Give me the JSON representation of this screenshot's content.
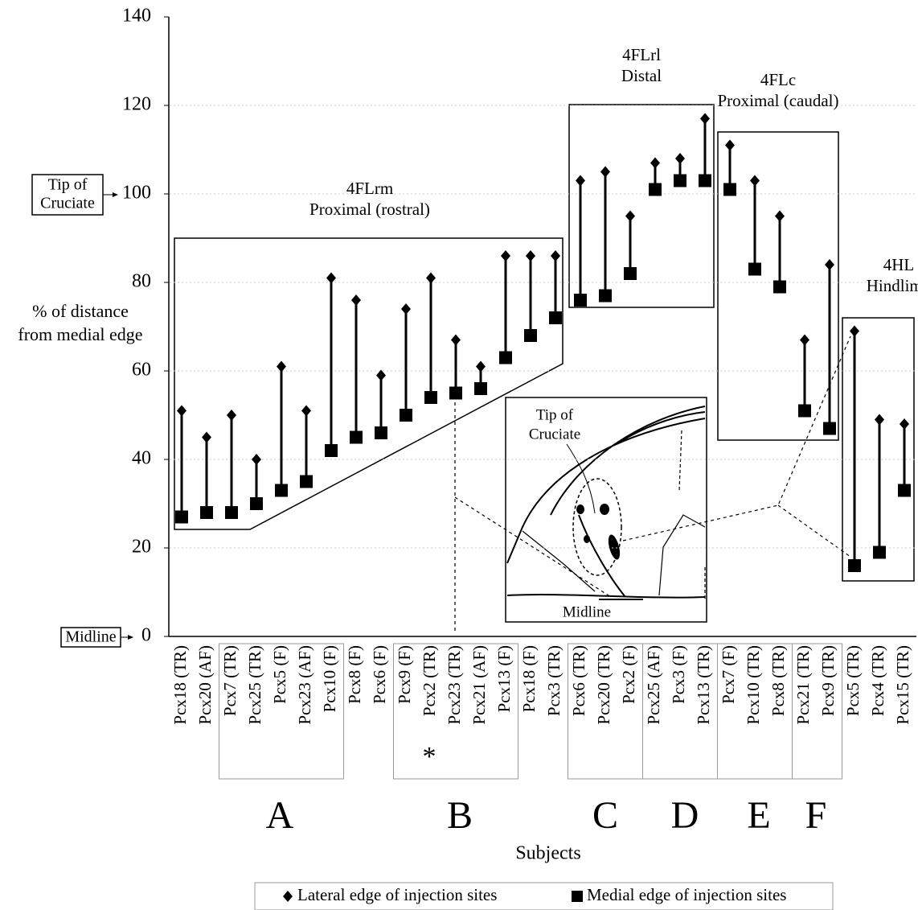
{
  "chart_data": {
    "type": "dumbbell",
    "ylabel": [
      "% of distance",
      "from medial edge"
    ],
    "xlabel": "Subjects",
    "ylim": [
      0,
      140
    ],
    "yticks": [
      0,
      20,
      40,
      60,
      80,
      100,
      120,
      140
    ],
    "grid": true,
    "categories": [
      "Pcx18 (TR)",
      "Pcx20 (AF)",
      "Pcx7 (TR)",
      "Pcx25 (TR)",
      "Pcx5 (F)",
      "Pcx23 (AF)",
      "Pcx10 (F)",
      "Pcx8 (F)",
      "Pcx6 (F)",
      "Pcx9 (F)",
      "Pcx2 (TR)",
      "Pcx23 (TR)",
      "Pcx21 (AF)",
      "Pcx13 (F)",
      "Pcx18 (F)",
      "Pcx3 (TR)",
      "Pcx6 (TR)",
      "Pcx20 (TR)",
      "Pcx2 (F)",
      "Pcx25 (AF)",
      "Pcx3 (F)",
      "Pcx13 (TR)",
      "Pcx7 (F)",
      "Pcx10 (TR)",
      "Pcx8 (TR)",
      "Pcx21 (TR)",
      "Pcx9 (TR)",
      "Pcx5 (TR)",
      "Pcx4 (TR)",
      "Pcx15 (TR)"
    ],
    "series": [
      {
        "name": "Lateral edge of injection sites",
        "marker": "diamond",
        "color": "#000000",
        "values": [
          51,
          45,
          50,
          40,
          61,
          51,
          81,
          76,
          59,
          74,
          81,
          67,
          61,
          86,
          86,
          86,
          103,
          105,
          95,
          107,
          108,
          117,
          111,
          103,
          95,
          67,
          84,
          69,
          49,
          48
        ]
      },
      {
        "name": "Medial edge of injection sites",
        "marker": "square",
        "color": "#000000",
        "values": [
          27,
          28,
          28,
          30,
          33,
          35,
          42,
          45,
          46,
          50,
          54,
          55,
          56,
          63,
          68,
          72,
          76,
          77,
          82,
          101,
          103,
          103,
          101,
          83,
          79,
          51,
          47,
          16,
          19,
          33
        ]
      }
    ],
    "asterisk": "*",
    "groups": [
      "A",
      "B",
      "C",
      "D",
      "E",
      "F"
    ],
    "regions": [
      {
        "name": "4FLrm",
        "subtitle": "Proximal (rostral)"
      },
      {
        "name": "4FLrl",
        "subtitle": "Distal"
      },
      {
        "name": "4FLc",
        "subtitle": "Proximal (caudal)"
      },
      {
        "name": "4HL",
        "subtitle": "Hindlimb"
      }
    ],
    "tip_label": [
      "Tip of",
      "Cruciate"
    ],
    "midline_label": "Midline",
    "inset": {
      "tip_label": [
        "Tip of",
        "Cruciate"
      ],
      "midline_label": "Midline"
    }
  }
}
